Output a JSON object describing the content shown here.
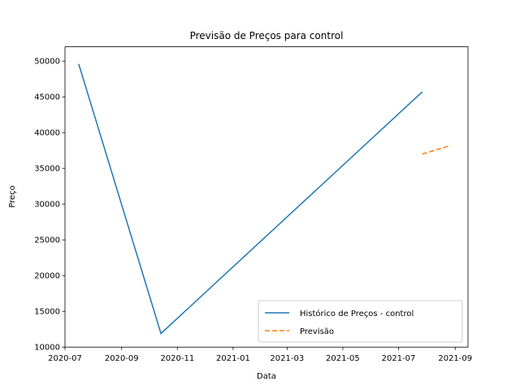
{
  "chart_data": {
    "type": "line",
    "title": "Previsão de Preços para control",
    "xlabel": "Data",
    "ylabel": "Preço",
    "x_axis_type": "date",
    "xlim": [
      "2020-07-01",
      "2021-09-15"
    ],
    "ylim": [
      10000,
      52000
    ],
    "x_ticks": [
      "2020-07",
      "2020-09",
      "2020-11",
      "2021-01",
      "2021-03",
      "2021-05",
      "2021-07",
      "2021-09"
    ],
    "y_ticks": [
      10000,
      15000,
      20000,
      25000,
      30000,
      35000,
      40000,
      45000,
      50000
    ],
    "grid": false,
    "legend_position": "lower-right",
    "series": [
      {
        "name": "Histórico de Preços - control",
        "color": "#1f77b4",
        "line_style": "solid",
        "points": [
          {
            "x": "2020-07-16",
            "y": 49600
          },
          {
            "x": "2020-10-14",
            "y": 11900
          },
          {
            "x": "2021-07-27",
            "y": 45700
          }
        ]
      },
      {
        "name": "Previsão",
        "color": "#ff7f0e",
        "line_style": "dashed",
        "points": [
          {
            "x": "2021-07-27",
            "y": 37000
          },
          {
            "x": "2021-08-27",
            "y": 38200
          }
        ]
      }
    ]
  }
}
